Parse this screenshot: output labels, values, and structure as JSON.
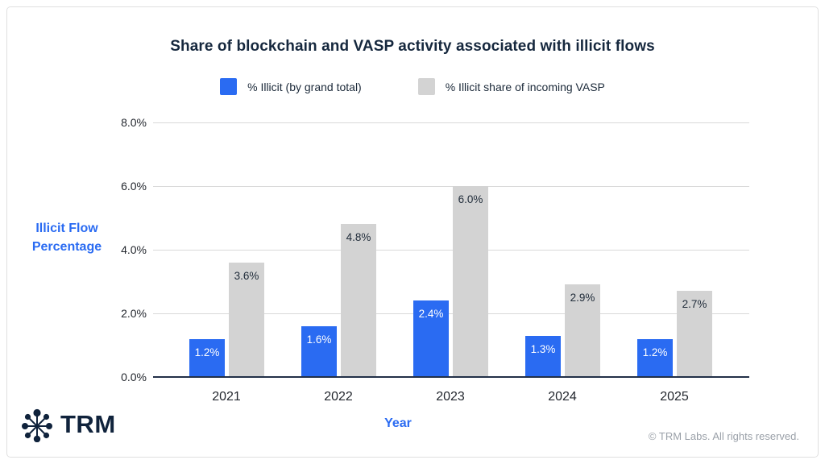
{
  "title": "Share of blockchain and VASP activity associated with illicit flows",
  "legend": {
    "items": [
      {
        "label": "% Illicit (by grand total)",
        "color": "#2a6bf2"
      },
      {
        "label": "% Illicit share of incoming VASP",
        "color": "#d3d3d3"
      }
    ]
  },
  "chart_data": {
    "type": "bar",
    "title": "Share of blockchain and VASP activity associated with illicit flows",
    "categories": [
      "2021",
      "2022",
      "2023",
      "2024",
      "2025"
    ],
    "series": [
      {
        "id": "grand-total",
        "name": "% Illicit (by grand total)",
        "color": "#2a6bf2",
        "label_color": "#ffffff",
        "values": [
          1.2,
          1.6,
          2.4,
          1.3,
          1.2
        ],
        "labels": [
          "1.2%",
          "1.6%",
          "2.4%",
          "1.3%",
          "1.2%"
        ]
      },
      {
        "id": "vasp-share",
        "name": "% Illicit share of incoming VASP",
        "color": "#d3d3d3",
        "label_color": "#1e2a38",
        "values": [
          3.6,
          4.8,
          6.0,
          2.9,
          2.7
        ],
        "labels": [
          "3.6%",
          "4.8%",
          "6.0%",
          "2.9%",
          "2.7%"
        ]
      }
    ],
    "xlabel": "Year",
    "ylabel": "Illicit Flow Percentage",
    "ylabel_lines": [
      "Illicit Flow",
      "Percentage"
    ],
    "ylim": [
      0,
      8
    ],
    "yticks": [
      {
        "value": 0,
        "label": "0.0%"
      },
      {
        "value": 2,
        "label": "2.0%"
      },
      {
        "value": 4,
        "label": "4.0%"
      },
      {
        "value": 6,
        "label": "6.0%"
      },
      {
        "value": 8,
        "label": "8.0%"
      }
    ],
    "grid": true,
    "legend_position": "top"
  },
  "footer": {
    "logo_text": "TRM",
    "copyright": "© TRM Labs. All rights reserved."
  },
  "colors": {
    "accent_blue": "#2a6bf2",
    "bar_gray": "#d3d3d3",
    "title_text": "#16283e",
    "axis_line": "#223048",
    "gridline": "#d9d9d9",
    "tick_text": "#23272e",
    "muted_text": "#9aa0a8",
    "logo_navy": "#10233c"
  }
}
